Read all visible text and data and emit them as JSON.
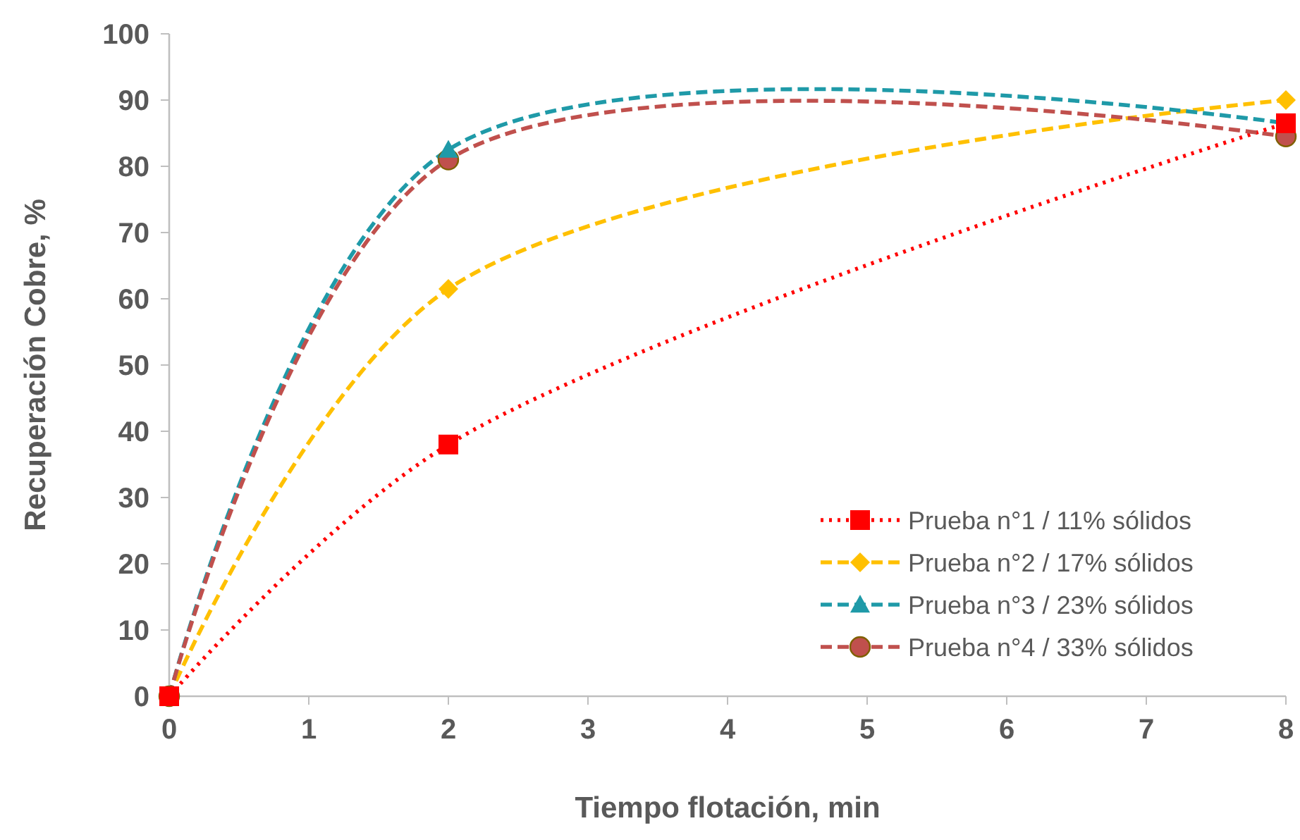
{
  "chart_data": {
    "type": "line",
    "xlabel": "Tiempo flotación, min",
    "ylabel": "Recuperación Cobre, %",
    "x": [
      0,
      2,
      8
    ],
    "xlim": [
      0,
      8
    ],
    "xticks": [
      0,
      1,
      2,
      3,
      4,
      5,
      6,
      7,
      8
    ],
    "ylim": [
      0,
      100
    ],
    "yticks": [
      0,
      10,
      20,
      30,
      40,
      50,
      60,
      70,
      80,
      90,
      100
    ],
    "grid": false,
    "legend": "bottom right",
    "series": [
      {
        "name": "Prueba n°1 / 11% sólidos",
        "color": "#ff0000",
        "values": [
          0,
          38,
          86.5
        ],
        "marker": "square",
        "line_style": "dotted"
      },
      {
        "name": "Prueba n°2 / 17% sólidos",
        "color": "#ffc000",
        "values": [
          0,
          61.5,
          90
        ],
        "marker": "diamond",
        "line_style": "dashed"
      },
      {
        "name": "Prueba n°3 / 23% sólidos",
        "color": "#1f9aa8",
        "values": [
          0,
          82.5,
          86.5
        ],
        "marker": "triangle",
        "line_style": "dashed"
      },
      {
        "name": "Prueba n°4 / 33% sólidos",
        "color": "#c0504d",
        "values": [
          0,
          81,
          84.5
        ],
        "marker": "circle",
        "line_style": "dashed"
      }
    ]
  }
}
